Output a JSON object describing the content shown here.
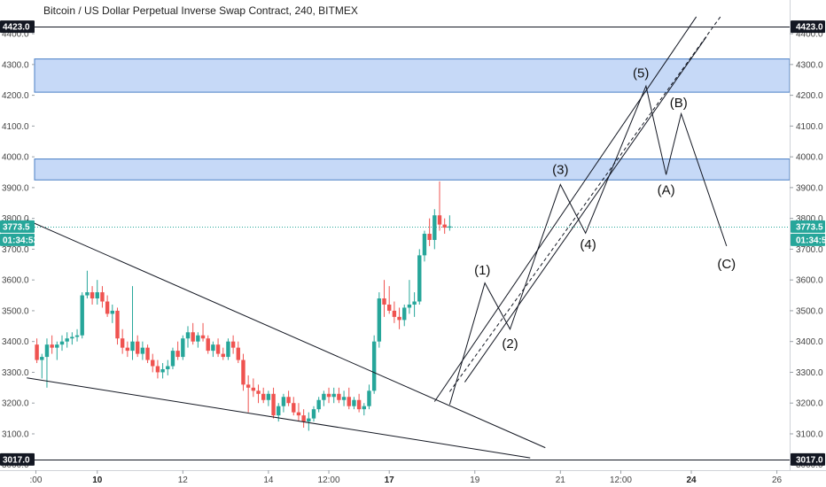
{
  "chart_data": {
    "type": "candlestick",
    "title": "Bitcoin / US Dollar Perpetual Inverse Swap Contract, 240, BITMEX",
    "y_ticks": [
      3000,
      3100,
      3200,
      3300,
      3400,
      3500,
      3600,
      3700,
      3800,
      3900,
      4000,
      4100,
      4200,
      4300,
      4400
    ],
    "y_range": [
      2982,
      4452
    ],
    "grid": false,
    "x_ticks": [
      {
        "label": ":00",
        "bar": -0.2,
        "bold": false
      },
      {
        "label": "10",
        "bar": 12,
        "bold": true
      },
      {
        "label": "12",
        "bar": 29,
        "bold": false
      },
      {
        "label": "14",
        "bar": 46,
        "bold": false
      },
      {
        "label": "12:00",
        "bar": 58,
        "bold": false
      },
      {
        "label": "17",
        "bar": 70,
        "bold": true
      },
      {
        "label": "19",
        "bar": 87,
        "bold": false
      },
      {
        "label": "21",
        "bar": 104,
        "bold": false
      },
      {
        "label": "12:00",
        "bar": 116,
        "bold": false
      },
      {
        "label": "24",
        "bar": 130,
        "bold": true
      },
      {
        "label": "26",
        "bar": 147,
        "bold": false
      }
    ],
    "ohlc": [
      [
        3390,
        3410,
        3330,
        3340
      ],
      [
        3340,
        3360,
        3280,
        3350
      ],
      [
        3350,
        3410,
        3250,
        3390
      ],
      [
        3390,
        3420,
        3360,
        3380
      ],
      [
        3380,
        3400,
        3340,
        3390
      ],
      [
        3390,
        3420,
        3370,
        3400
      ],
      [
        3400,
        3430,
        3380,
        3410
      ],
      [
        3410,
        3430,
        3390,
        3415
      ],
      [
        3415,
        3440,
        3400,
        3420
      ],
      [
        3420,
        3560,
        3410,
        3550
      ],
      [
        3550,
        3630,
        3540,
        3560
      ],
      [
        3560,
        3580,
        3520,
        3540
      ],
      [
        3540,
        3600,
        3520,
        3560
      ],
      [
        3560,
        3580,
        3510,
        3530
      ],
      [
        3530,
        3550,
        3480,
        3490
      ],
      [
        3490,
        3520,
        3460,
        3500
      ],
      [
        3500,
        3510,
        3390,
        3410
      ],
      [
        3410,
        3440,
        3360,
        3380
      ],
      [
        3380,
        3400,
        3350,
        3370
      ],
      [
        3370,
        3580,
        3340,
        3400
      ],
      [
        3400,
        3420,
        3350,
        3360
      ],
      [
        3360,
        3400,
        3340,
        3380
      ],
      [
        3380,
        3390,
        3330,
        3340
      ],
      [
        3340,
        3360,
        3300,
        3320
      ],
      [
        3320,
        3340,
        3280,
        3300
      ],
      [
        3300,
        3330,
        3280,
        3310
      ],
      [
        3310,
        3340,
        3290,
        3320
      ],
      [
        3320,
        3380,
        3310,
        3370
      ],
      [
        3370,
        3400,
        3340,
        3350
      ],
      [
        3350,
        3420,
        3340,
        3410
      ],
      [
        3410,
        3450,
        3380,
        3430
      ],
      [
        3430,
        3460,
        3390,
        3400
      ],
      [
        3400,
        3430,
        3380,
        3420
      ],
      [
        3420,
        3460,
        3400,
        3410
      ],
      [
        3410,
        3420,
        3360,
        3370
      ],
      [
        3370,
        3400,
        3350,
        3390
      ],
      [
        3390,
        3410,
        3350,
        3360
      ],
      [
        3360,
        3380,
        3340,
        3350
      ],
      [
        3350,
        3410,
        3340,
        3400
      ],
      [
        3400,
        3420,
        3360,
        3380
      ],
      [
        3380,
        3400,
        3330,
        3340
      ],
      [
        3340,
        3360,
        3240,
        3260
      ],
      [
        3260,
        3290,
        3170,
        3250
      ],
      [
        3250,
        3280,
        3220,
        3240
      ],
      [
        3240,
        3260,
        3200,
        3230
      ],
      [
        3230,
        3250,
        3200,
        3210
      ],
      [
        3210,
        3240,
        3190,
        3230
      ],
      [
        3230,
        3250,
        3150,
        3160
      ],
      [
        3160,
        3200,
        3140,
        3190
      ],
      [
        3190,
        3230,
        3170,
        3220
      ],
      [
        3220,
        3240,
        3190,
        3200
      ],
      [
        3200,
        3220,
        3160,
        3170
      ],
      [
        3170,
        3200,
        3140,
        3160
      ],
      [
        3160,
        3180,
        3120,
        3140
      ],
      [
        3140,
        3170,
        3110,
        3150
      ],
      [
        3150,
        3190,
        3140,
        3180
      ],
      [
        3180,
        3220,
        3170,
        3210
      ],
      [
        3210,
        3240,
        3190,
        3230
      ],
      [
        3230,
        3250,
        3200,
        3220
      ],
      [
        3220,
        3250,
        3200,
        3230
      ],
      [
        3230,
        3250,
        3200,
        3210
      ],
      [
        3210,
        3240,
        3190,
        3220
      ],
      [
        3220,
        3250,
        3180,
        3190
      ],
      [
        3190,
        3220,
        3180,
        3210
      ],
      [
        3210,
        3230,
        3170,
        3180
      ],
      [
        3180,
        3200,
        3160,
        3190
      ],
      [
        3190,
        3260,
        3180,
        3240
      ],
      [
        3240,
        3420,
        3230,
        3400
      ],
      [
        3400,
        3560,
        3380,
        3540
      ],
      [
        3540,
        3600,
        3480,
        3520
      ],
      [
        3520,
        3580,
        3490,
        3500
      ],
      [
        3500,
        3530,
        3460,
        3480
      ],
      [
        3480,
        3510,
        3440,
        3470
      ],
      [
        3470,
        3520,
        3450,
        3510
      ],
      [
        3510,
        3600,
        3490,
        3520
      ],
      [
        3520,
        3560,
        3480,
        3530
      ],
      [
        3530,
        3700,
        3520,
        3680
      ],
      [
        3680,
        3760,
        3660,
        3750
      ],
      [
        3750,
        3800,
        3710,
        3730
      ],
      [
        3730,
        3830,
        3700,
        3810
      ],
      [
        3810,
        3920,
        3760,
        3780
      ],
      [
        3780,
        3800,
        3750,
        3770
      ],
      [
        3770,
        3810,
        3760,
        3774
      ]
    ],
    "annotations": [
      {
        "type": "hline",
        "price": 4423,
        "label": "4423.0",
        "style": "solid",
        "color": "#131722"
      },
      {
        "type": "hline",
        "price": 3017,
        "label": "3017.0",
        "style": "solid",
        "color": "#131722"
      },
      {
        "type": "hline",
        "price": 3773.5,
        "label": "3773.5",
        "sublabel": "01:34:53",
        "style": "dotted",
        "color": "#26a69a"
      },
      {
        "type": "zone",
        "from": 4210,
        "to": 4318,
        "color": "#c6d9f7",
        "border": "#4a7fc5"
      },
      {
        "type": "zone",
        "from": 3925,
        "to": 3993,
        "color": "#c6d9f7",
        "border": "#4a7fc5"
      },
      {
        "type": "trendline",
        "points": [
          [
            -2,
            3795
          ],
          [
            101,
            3055
          ]
        ]
      },
      {
        "type": "trendline",
        "points": [
          [
            -2,
            3282
          ],
          [
            98,
            3022
          ]
        ]
      },
      {
        "type": "trendline",
        "points": [
          [
            79,
            3205
          ],
          [
            131,
            4455
          ]
        ]
      },
      {
        "type": "trendline",
        "points": [
          [
            85,
            3268
          ],
          [
            133,
            4390
          ]
        ]
      },
      {
        "type": "trendline",
        "points": [
          [
            82,
            3237
          ],
          [
            136,
            4460
          ]
        ],
        "style": "dashed"
      },
      {
        "type": "polyline",
        "points": [
          [
            82,
            3195
          ],
          [
            89,
            3590
          ],
          [
            94,
            3440
          ],
          [
            104,
            3910
          ],
          [
            109,
            3752
          ],
          [
            121,
            4230
          ],
          [
            125,
            3942
          ],
          [
            128,
            4140
          ],
          [
            137,
            3710
          ]
        ]
      }
    ],
    "wave_labels": [
      {
        "text": "(1)",
        "bar": 88.5,
        "price": 3629
      },
      {
        "text": "(2)",
        "bar": 94,
        "price": 3391
      },
      {
        "text": "(3)",
        "bar": 104,
        "price": 3955
      },
      {
        "text": "(4)",
        "bar": 109.5,
        "price": 3713
      },
      {
        "text": "(5)",
        "bar": 120,
        "price": 4269
      },
      {
        "text": "(B)",
        "bar": 127.5,
        "price": 4173
      },
      {
        "text": "(A)",
        "bar": 125,
        "price": 3889
      },
      {
        "text": "(C)",
        "bar": 137,
        "price": 3649
      }
    ]
  }
}
